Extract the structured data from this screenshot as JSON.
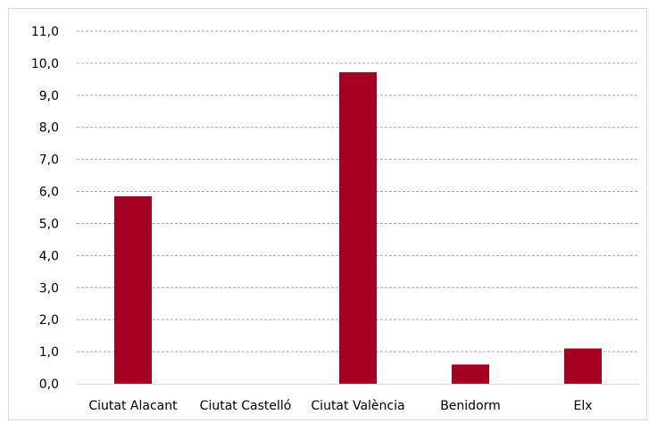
{
  "chart_data": {
    "type": "bar",
    "categories": [
      "Ciutat Alacant",
      "Ciutat Castelló",
      "Ciutat València",
      "Benidorm",
      "Elx"
    ],
    "values": [
      5.85,
      0,
      9.72,
      0.6,
      1.1
    ],
    "ylim": [
      0,
      11
    ],
    "yticks": [
      "0,0",
      "1,0",
      "2,0",
      "3,0",
      "4,0",
      "5,0",
      "6,0",
      "7,0",
      "8,0",
      "9,0",
      "10,0",
      "11,0"
    ],
    "grid": true,
    "legend": "none",
    "bar_color": "#a50021",
    "grid_color": "#a6a6a6",
    "axis_color": "#d9d9d9"
  }
}
